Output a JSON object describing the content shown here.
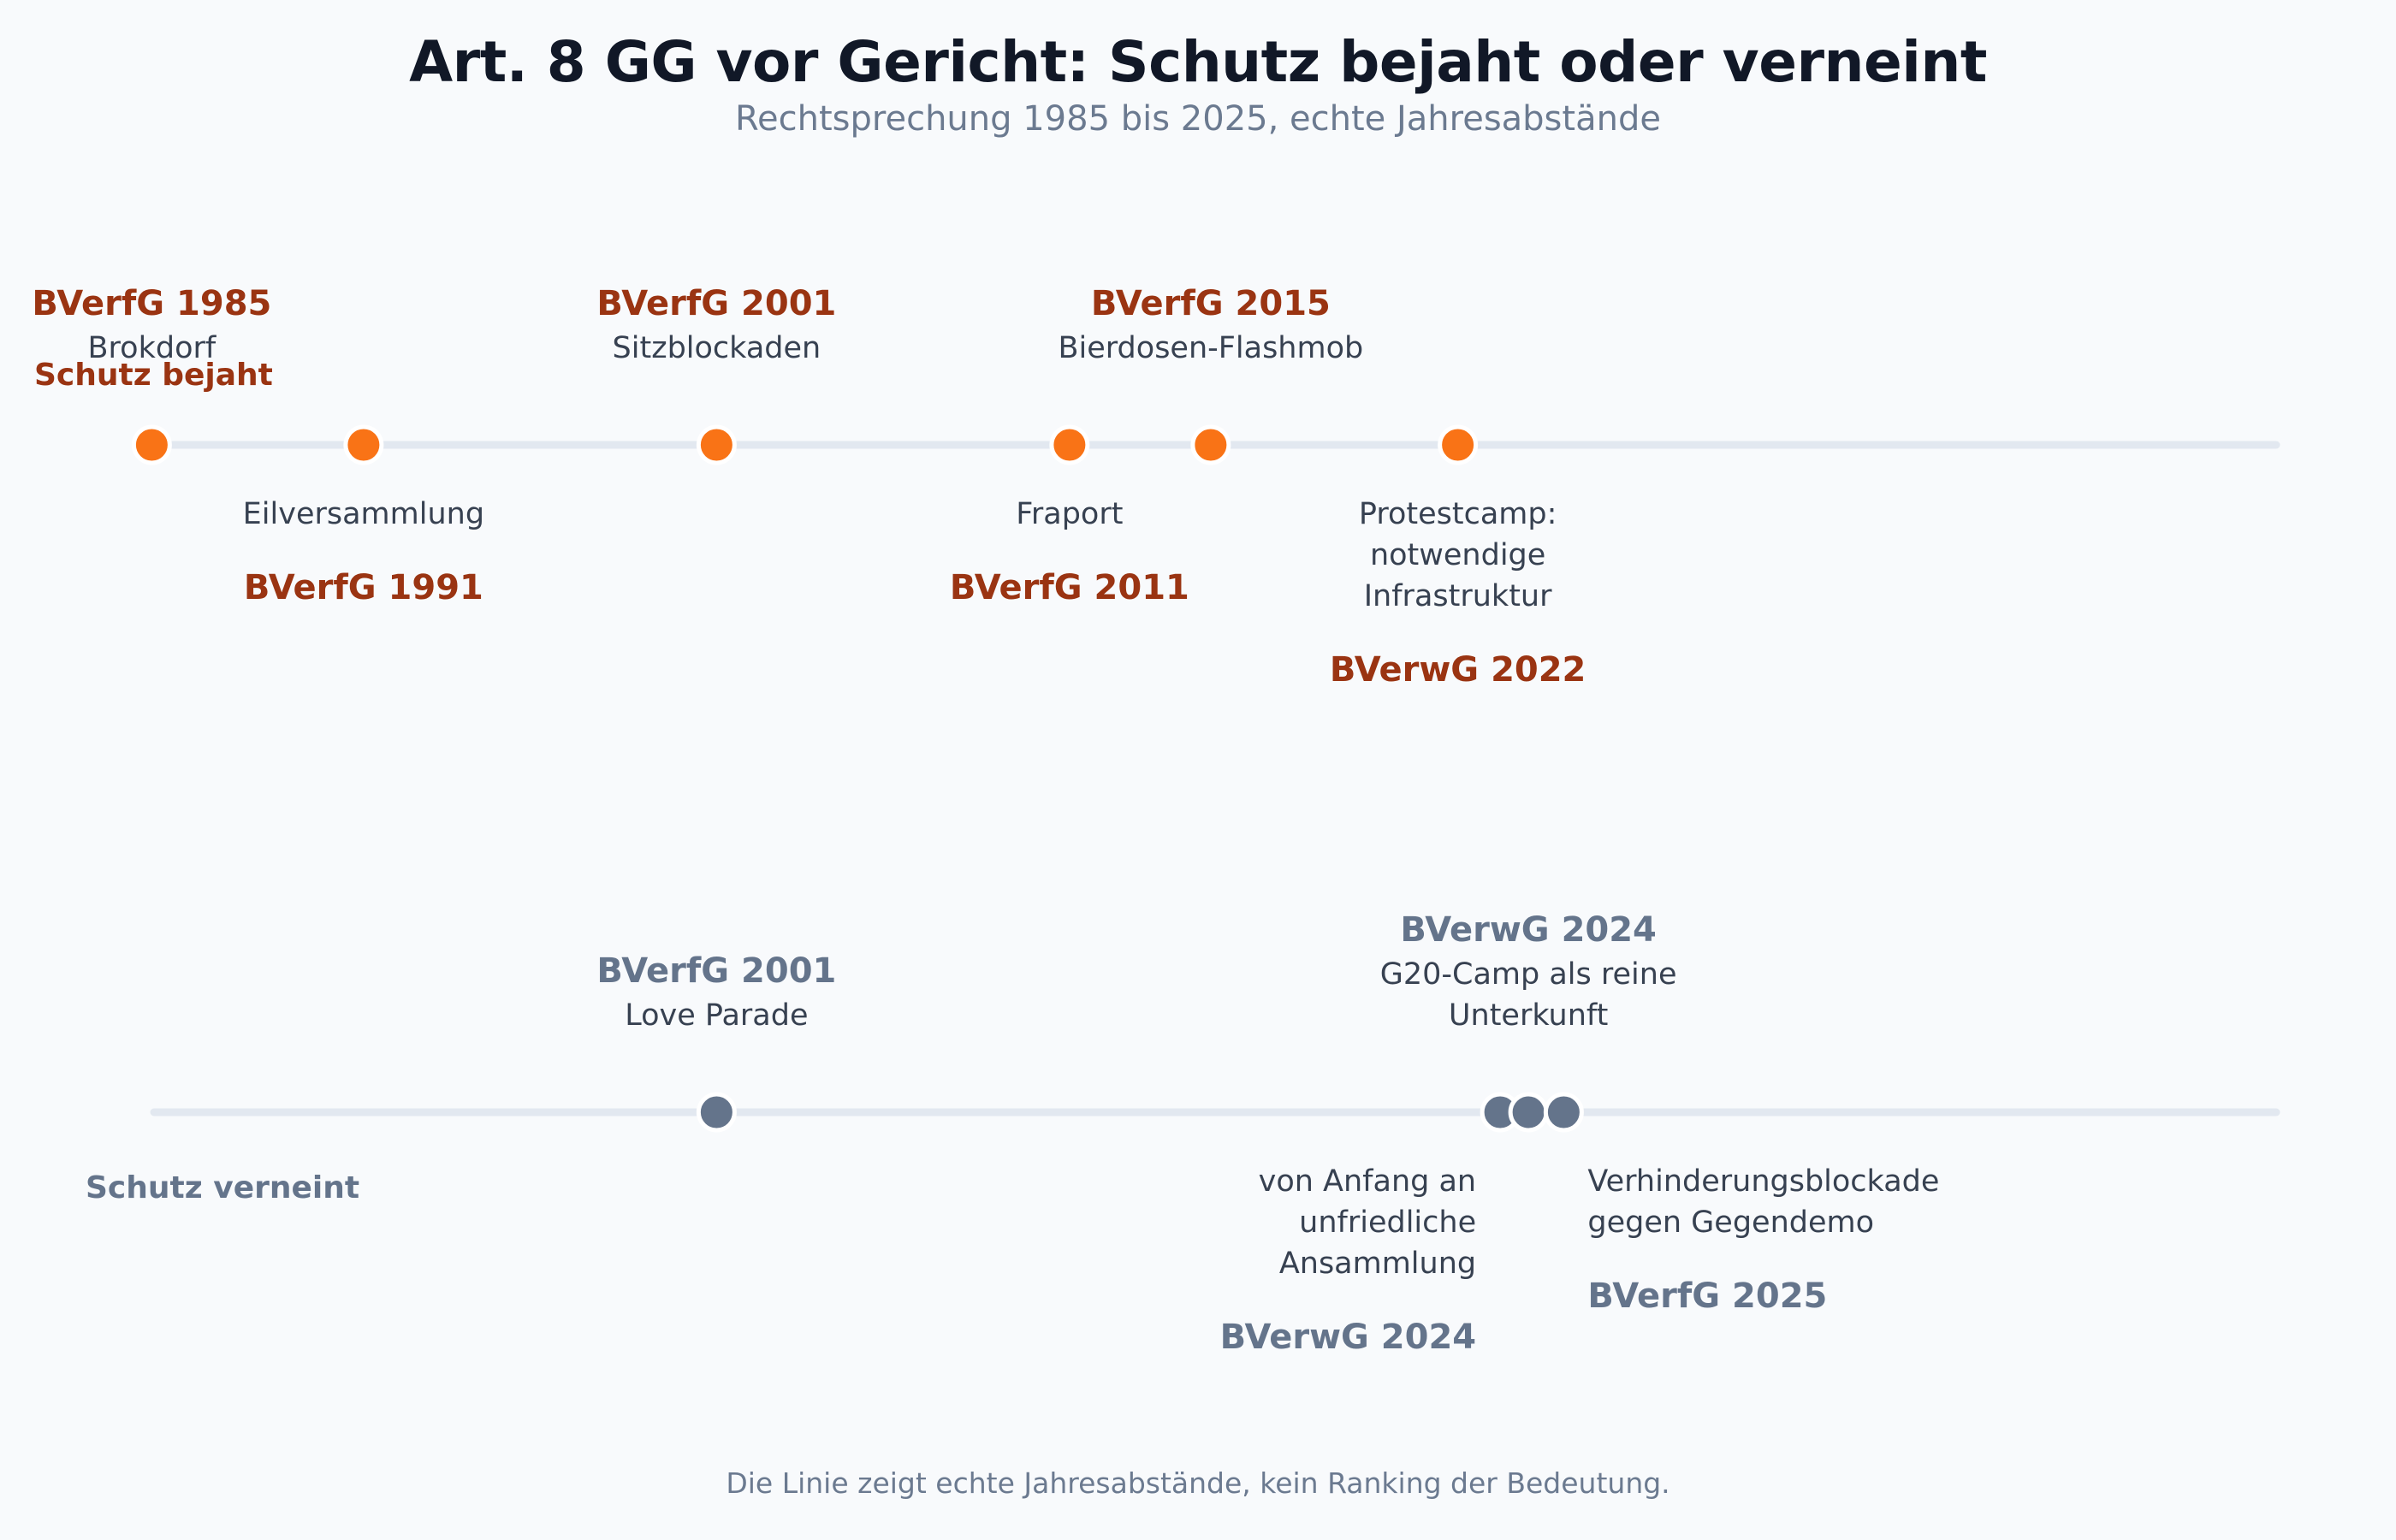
{
  "title": "Art. 8 GG vor Gericht: Schutz bejaht oder verneint",
  "subtitle": "Rechtsprechung 1985 bis 2025, echte Jahresabstände",
  "footnote": "Die Linie zeigt echte Jahresabstände, kein Ranking der Bedeutung.",
  "colors": {
    "affirmed_dot": "#f97316",
    "affirmed_text": "#9a3412",
    "denied": "#64748b",
    "axis": "#e2e8f0",
    "body_text": "#374151"
  },
  "rows": [
    {
      "id": "affirmed",
      "label": "Schutz bejaht",
      "events": [
        {
          "court": "BVerfG 1985",
          "desc": [
            "Brokdorf"
          ],
          "year": 1985,
          "side": "above"
        },
        {
          "court": "BVerfG 1991",
          "desc": [
            "Eilversammlung"
          ],
          "year": 1991,
          "side": "below"
        },
        {
          "court": "BVerfG 2001",
          "desc": [
            "Sitzblockaden"
          ],
          "year": 2001,
          "side": "above"
        },
        {
          "court": "BVerfG 2011",
          "desc": [
            "Fraport"
          ],
          "year": 2011,
          "side": "below"
        },
        {
          "court": "BVerfG 2015",
          "desc": [
            "Bierdosen-Flashmob"
          ],
          "year": 2015,
          "side": "above"
        },
        {
          "court": "BVerwG 2022",
          "desc": [
            "Protestcamp:",
            "notwendige",
            "Infrastruktur"
          ],
          "year": 2022,
          "side": "below"
        }
      ]
    },
    {
      "id": "denied",
      "label": "Schutz verneint",
      "events": [
        {
          "court": "BVerfG 2001",
          "desc": [
            "Love Parade"
          ],
          "year": 2001,
          "side": "above"
        },
        {
          "court": "BVerwG 2024",
          "desc": [
            "von Anfang an",
            "unfriedliche",
            "Ansammlung"
          ],
          "year": 2024,
          "offset": -1,
          "side": "below",
          "align": "end"
        },
        {
          "court": "BVerwG 2024",
          "desc": [
            "G20-Camp als reine",
            "Unterkunft"
          ],
          "year": 2024,
          "offset": 0,
          "side": "above"
        },
        {
          "court": "BVerfG 2025",
          "desc": [
            "Verhinderungsblockade",
            "gegen Gegendemo"
          ],
          "year": 2025,
          "side": "below",
          "align": "start"
        }
      ]
    }
  ]
}
